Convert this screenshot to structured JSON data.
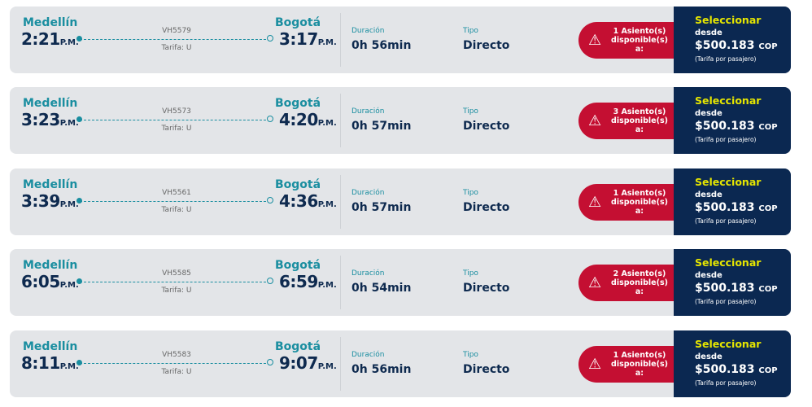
{
  "labels": {
    "duration": "Duración",
    "type": "Tipo",
    "select": "Seleccionar",
    "from": "desde",
    "fare_note": "(Tarifa por pasajero)",
    "currency": "COP",
    "warning_icon": "warning-triangle-icon"
  },
  "colors": {
    "teal": "#1a8ea0",
    "navy": "#0b2851",
    "red": "#c40f32",
    "yellow": "#e6e600"
  },
  "flights": [
    {
      "origin": "Medellín",
      "dep": "2:21",
      "dep_ampm": "P.M.",
      "flight": "VH5579",
      "fare": "Tarifa: U",
      "dest": "Bogotá",
      "arr": "3:17",
      "arr_ampm": "P.M.",
      "duration": "0h 56min",
      "type": "Directo",
      "seats": "1 Asiento(s) disponible(s) a:",
      "price": "$500.183"
    },
    {
      "origin": "Medellín",
      "dep": "3:23",
      "dep_ampm": "P.M.",
      "flight": "VH5573",
      "fare": "Tarifa: U",
      "dest": "Bogotá",
      "arr": "4:20",
      "arr_ampm": "P.M.",
      "duration": "0h 57min",
      "type": "Directo",
      "seats": "3 Asiento(s) disponible(s) a:",
      "price": "$500.183"
    },
    {
      "origin": "Medellín",
      "dep": "3:39",
      "dep_ampm": "P.M.",
      "flight": "VH5561",
      "fare": "Tarifa: U",
      "dest": "Bogotá",
      "arr": "4:36",
      "arr_ampm": "P.M.",
      "duration": "0h 57min",
      "type": "Directo",
      "seats": "1 Asiento(s) disponible(s) a:",
      "price": "$500.183"
    },
    {
      "origin": "Medellín",
      "dep": "6:05",
      "dep_ampm": "P.M.",
      "flight": "VH5585",
      "fare": "Tarifa: U",
      "dest": "Bogotá",
      "arr": "6:59",
      "arr_ampm": "P.M.",
      "duration": "0h 54min",
      "type": "Directo",
      "seats": "2 Asiento(s) disponible(s) a:",
      "price": "$500.183"
    },
    {
      "origin": "Medellín",
      "dep": "8:11",
      "dep_ampm": "P.M.",
      "flight": "VH5583",
      "fare": "Tarifa: U",
      "dest": "Bogotá",
      "arr": "9:07",
      "arr_ampm": "P.M.",
      "duration": "0h 56min",
      "type": "Directo",
      "seats": "1 Asiento(s) disponible(s) a:",
      "price": "$500.183"
    }
  ]
}
